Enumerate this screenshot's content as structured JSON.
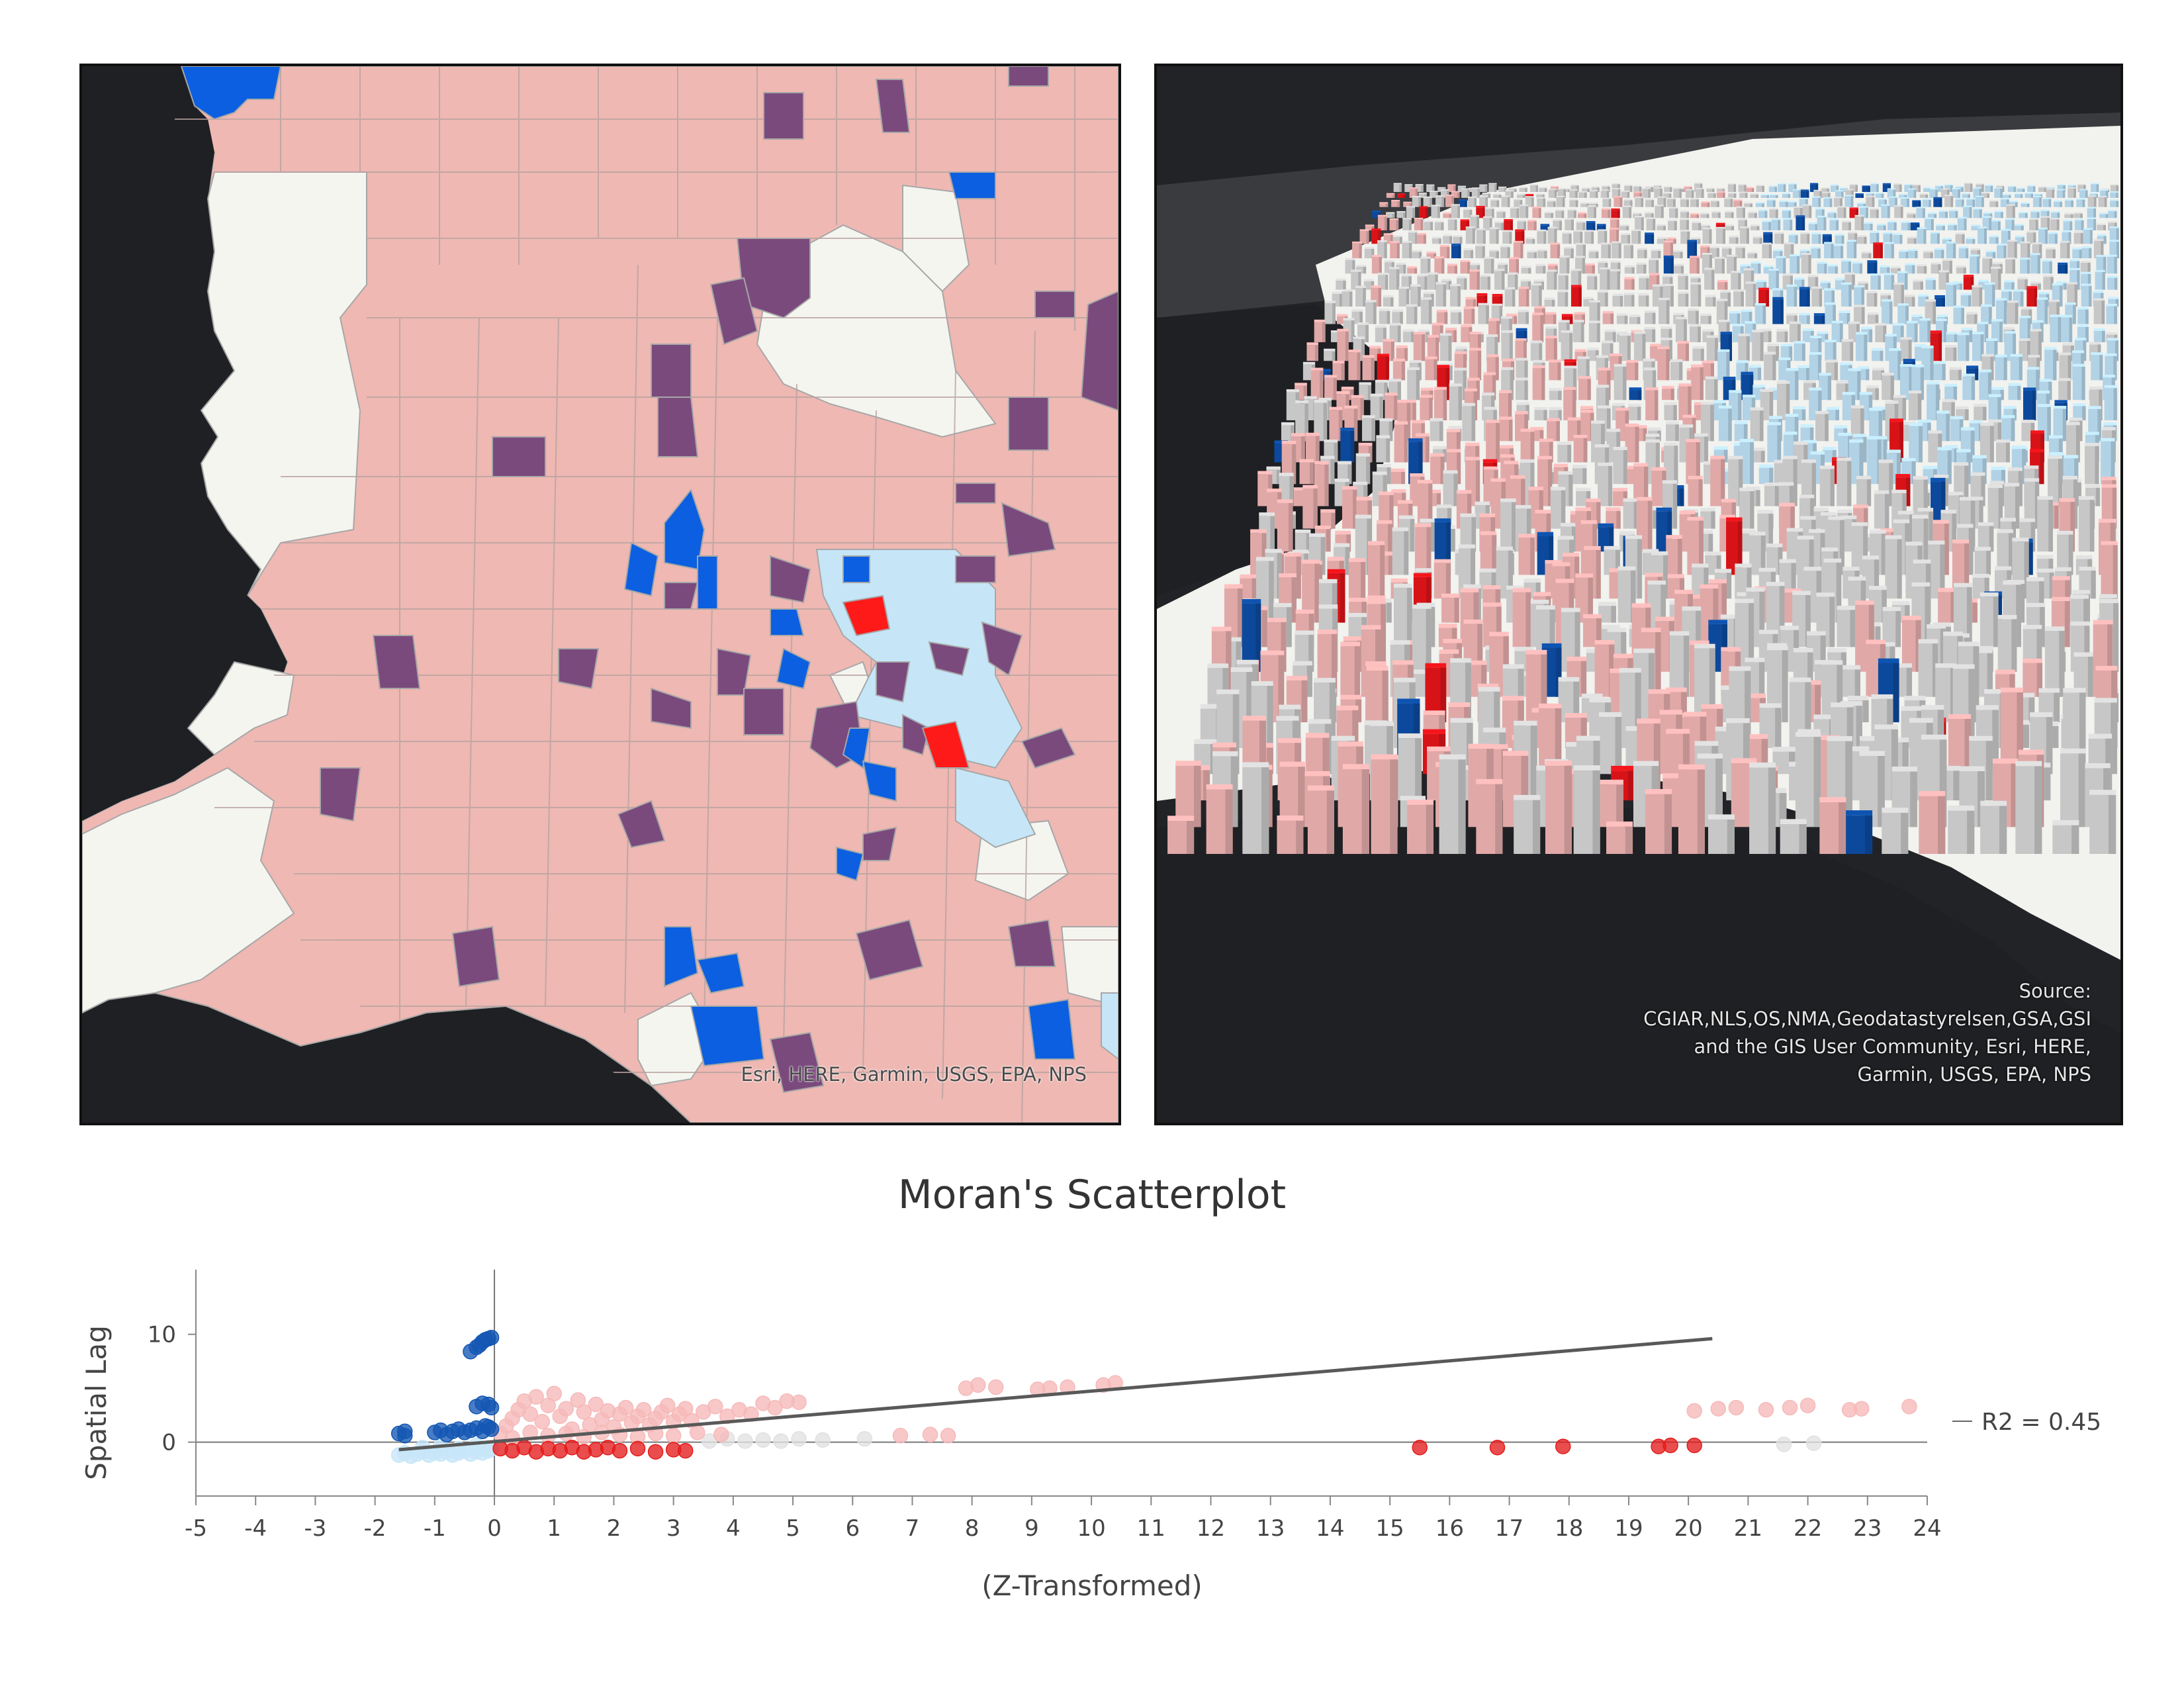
{
  "maps": {
    "left": {
      "attribution": "Esri, HERE, Garmin, USGS, EPA, NPS",
      "colors": {
        "water": "#1f2023",
        "high_high": "#efb8b3",
        "not_significant": "#f5f5f0",
        "high_low": "#7b4a7d",
        "low_high": "#0b5fe0",
        "low_low": "#c6e6f8",
        "outlier_red": "#ff1a1a",
        "border": "#a7a7a7"
      }
    },
    "right": {
      "attribution_lines": [
        "Source:",
        "CGIAR,NLS,OS,NMA,Geodatastyrelsen,GSA,GSI",
        "and the GIS User Community, Esri, HERE,",
        "Garmin, USGS, EPA, NPS"
      ],
      "colors": {
        "ground": "#2a2b2e",
        "water": "#1f2023",
        "bar_gray": "#d6d6d6",
        "bar_pink": "#f1b6b5",
        "bar_lightblue": "#bfe2f7",
        "bar_blue": "#0d4fa8",
        "bar_red": "#e8141a"
      }
    }
  },
  "chart_data": {
    "type": "scatter",
    "title": "Moran's Scatterplot",
    "xlabel": "(Z-Transformed)",
    "ylabel": "Spatial Lag",
    "xlim": [
      -5,
      24
    ],
    "ylim": [
      -5,
      16
    ],
    "xticks": [
      -5,
      -4,
      -3,
      -2,
      -1,
      0,
      1,
      2,
      3,
      4,
      5,
      6,
      7,
      8,
      9,
      10,
      11,
      12,
      13,
      14,
      15,
      16,
      17,
      18,
      19,
      20,
      21,
      22,
      23,
      24
    ],
    "yticks": [
      0,
      10
    ],
    "grid": false,
    "regression_line": {
      "x": [
        -1.6,
        20.4
      ],
      "y": [
        -0.7,
        9.6
      ],
      "label": "R2 = 0.45",
      "color": "#595959"
    },
    "series": [
      {
        "color": "#1457b4",
        "points": [
          [
            -1.6,
            0.8
          ],
          [
            -1.5,
            0.6
          ],
          [
            -1.5,
            1.0
          ],
          [
            -1.0,
            0.9
          ],
          [
            -0.9,
            1.1
          ],
          [
            -0.8,
            0.7
          ],
          [
            -0.7,
            1.0
          ],
          [
            -0.6,
            1.2
          ],
          [
            -0.5,
            0.9
          ],
          [
            -0.4,
            1.1
          ],
          [
            -0.3,
            1.3
          ],
          [
            -0.2,
            1.0
          ],
          [
            -0.15,
            1.5
          ],
          [
            -0.1,
            1.4
          ],
          [
            -0.05,
            1.2
          ],
          [
            -0.3,
            3.3
          ],
          [
            -0.2,
            3.6
          ],
          [
            -0.1,
            3.5
          ],
          [
            -0.05,
            3.2
          ],
          [
            -0.4,
            8.4
          ],
          [
            -0.3,
            8.8
          ],
          [
            -0.25,
            9.0
          ],
          [
            -0.2,
            9.3
          ],
          [
            -0.15,
            9.5
          ],
          [
            -0.1,
            9.6
          ],
          [
            -0.05,
            9.7
          ]
        ]
      },
      {
        "color": "#c7e6f8",
        "points": [
          [
            -1.6,
            -1.2
          ],
          [
            -1.5,
            -1.0
          ],
          [
            -1.4,
            -1.3
          ],
          [
            -1.3,
            -1.1
          ],
          [
            -1.2,
            -0.9
          ],
          [
            -1.1,
            -1.2
          ],
          [
            -1.0,
            -1.0
          ],
          [
            -0.9,
            -1.1
          ],
          [
            -0.8,
            -0.9
          ],
          [
            -0.7,
            -1.2
          ],
          [
            -0.6,
            -1.0
          ],
          [
            -0.5,
            -0.8
          ],
          [
            -0.4,
            -1.1
          ],
          [
            -0.3,
            -0.9
          ],
          [
            -0.2,
            -1.0
          ],
          [
            -0.1,
            -0.8
          ],
          [
            -0.05,
            -0.6
          ],
          [
            -1.2,
            -0.5
          ],
          [
            -0.9,
            -0.4
          ],
          [
            -0.6,
            -0.6
          ],
          [
            -0.3,
            -0.3
          ]
        ]
      },
      {
        "color": "#f6b9b9",
        "points": [
          [
            0.1,
            0.8
          ],
          [
            0.2,
            1.5
          ],
          [
            0.3,
            2.2
          ],
          [
            0.4,
            3.0
          ],
          [
            0.5,
            3.8
          ],
          [
            0.6,
            2.6
          ],
          [
            0.7,
            4.2
          ],
          [
            0.8,
            1.9
          ],
          [
            0.9,
            3.4
          ],
          [
            1.0,
            4.5
          ],
          [
            1.1,
            2.4
          ],
          [
            1.2,
            3.1
          ],
          [
            1.3,
            1.2
          ],
          [
            1.4,
            3.9
          ],
          [
            1.5,
            2.8
          ],
          [
            1.6,
            1.6
          ],
          [
            1.7,
            3.5
          ],
          [
            1.8,
            2.1
          ],
          [
            1.9,
            2.9
          ],
          [
            2.0,
            1.4
          ],
          [
            2.1,
            2.6
          ],
          [
            2.2,
            3.2
          ],
          [
            2.3,
            1.8
          ],
          [
            2.4,
            2.4
          ],
          [
            2.5,
            3.0
          ],
          [
            2.6,
            1.6
          ],
          [
            2.7,
            2.2
          ],
          [
            2.8,
            2.8
          ],
          [
            2.9,
            3.4
          ],
          [
            3.0,
            1.9
          ],
          [
            3.1,
            2.6
          ],
          [
            3.2,
            3.1
          ],
          [
            3.3,
            2.0
          ],
          [
            3.5,
            2.8
          ],
          [
            3.7,
            3.3
          ],
          [
            3.9,
            2.4
          ],
          [
            4.1,
            3.0
          ],
          [
            4.3,
            2.6
          ],
          [
            4.5,
            3.6
          ],
          [
            4.7,
            3.2
          ],
          [
            4.9,
            3.8
          ],
          [
            5.1,
            3.7
          ],
          [
            0.3,
            0.4
          ],
          [
            0.6,
            0.9
          ],
          [
            0.9,
            0.6
          ],
          [
            1.2,
            0.8
          ],
          [
            1.5,
            0.5
          ],
          [
            1.8,
            0.9
          ],
          [
            2.1,
            0.7
          ],
          [
            2.4,
            0.5
          ],
          [
            2.7,
            0.8
          ],
          [
            3.0,
            0.6
          ],
          [
            3.4,
            0.9
          ],
          [
            3.8,
            0.7
          ],
          [
            6.8,
            0.6
          ],
          [
            7.3,
            0.7
          ],
          [
            7.6,
            0.6
          ],
          [
            7.9,
            5.0
          ],
          [
            8.1,
            5.3
          ],
          [
            8.4,
            5.1
          ],
          [
            9.1,
            4.9
          ],
          [
            9.3,
            5.0
          ],
          [
            9.6,
            5.1
          ],
          [
            10.2,
            5.3
          ],
          [
            10.4,
            5.5
          ],
          [
            20.1,
            2.9
          ],
          [
            20.5,
            3.1
          ],
          [
            20.8,
            3.2
          ],
          [
            21.3,
            3.0
          ],
          [
            21.7,
            3.2
          ],
          [
            22.0,
            3.4
          ],
          [
            22.7,
            3.0
          ],
          [
            22.9,
            3.1
          ],
          [
            23.7,
            3.3
          ]
        ]
      },
      {
        "color": "#e41b1b",
        "points": [
          [
            0.1,
            -0.6
          ],
          [
            0.3,
            -0.8
          ],
          [
            0.5,
            -0.5
          ],
          [
            0.7,
            -0.9
          ],
          [
            0.9,
            -0.6
          ],
          [
            1.1,
            -0.8
          ],
          [
            1.3,
            -0.5
          ],
          [
            1.5,
            -0.9
          ],
          [
            1.7,
            -0.7
          ],
          [
            1.9,
            -0.5
          ],
          [
            2.1,
            -0.8
          ],
          [
            2.4,
            -0.6
          ],
          [
            2.7,
            -0.9
          ],
          [
            3.0,
            -0.7
          ],
          [
            3.2,
            -0.8
          ],
          [
            15.5,
            -0.5
          ],
          [
            16.8,
            -0.5
          ],
          [
            17.9,
            -0.4
          ],
          [
            19.5,
            -0.4
          ],
          [
            19.7,
            -0.3
          ],
          [
            20.1,
            -0.3
          ]
        ]
      },
      {
        "color": "#e1e1e1",
        "points": [
          [
            3.6,
            0.1
          ],
          [
            3.9,
            0.3
          ],
          [
            4.2,
            0.1
          ],
          [
            4.5,
            0.2
          ],
          [
            4.8,
            0.1
          ],
          [
            5.1,
            0.3
          ],
          [
            5.5,
            0.2
          ],
          [
            6.2,
            0.3
          ],
          [
            21.6,
            -0.2
          ],
          [
            22.1,
            -0.1
          ]
        ]
      }
    ]
  }
}
